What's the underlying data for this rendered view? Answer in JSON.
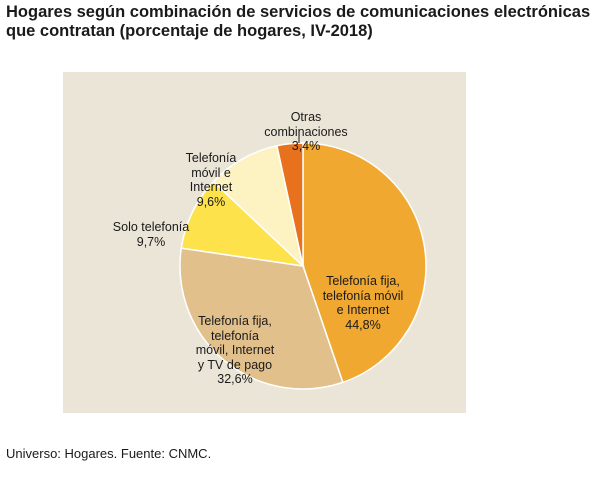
{
  "title_lines": [
    "Hogares según combinación de servicios de comunicaciones electrónicas",
    "que contratan (porcentaje de hogares, IV-2018)"
  ],
  "source": "Universo: Hogares. Fuente: CNMC.",
  "chart_data": {
    "type": "pie",
    "title": "Hogares según combinación de servicios de comunicaciones electrónicas que contratan (porcentaje de hogares, IV-2018)",
    "unit": "%",
    "start": "12 o'clock",
    "direction": "clockwise",
    "slices": [
      {
        "label_lines": [
          "Telefonía fija,",
          "telefonía móvil",
          "e Internet"
        ],
        "value_text": "44,8%",
        "value": 44.8,
        "color": "#f0a830"
      },
      {
        "label_lines": [
          "Telefonía fija,",
          "telefonía",
          "móvil, Internet",
          "y TV de pago"
        ],
        "value_text": "32,6%",
        "value": 32.6,
        "color": "#e2c08c"
      },
      {
        "label_lines": [
          "Solo telefonía"
        ],
        "value_text": "9,7%",
        "value": 9.7,
        "color": "#fde24c"
      },
      {
        "label_lines": [
          "Telefonía",
          "móvil e",
          "Internet"
        ],
        "value_text": "9,6%",
        "value": 9.6,
        "color": "#fcf2c2"
      },
      {
        "label_lines": [
          "Otras",
          "combinaciones"
        ],
        "value_text": "3,4%",
        "value": 3.4,
        "color": "#e8711e"
      }
    ]
  }
}
